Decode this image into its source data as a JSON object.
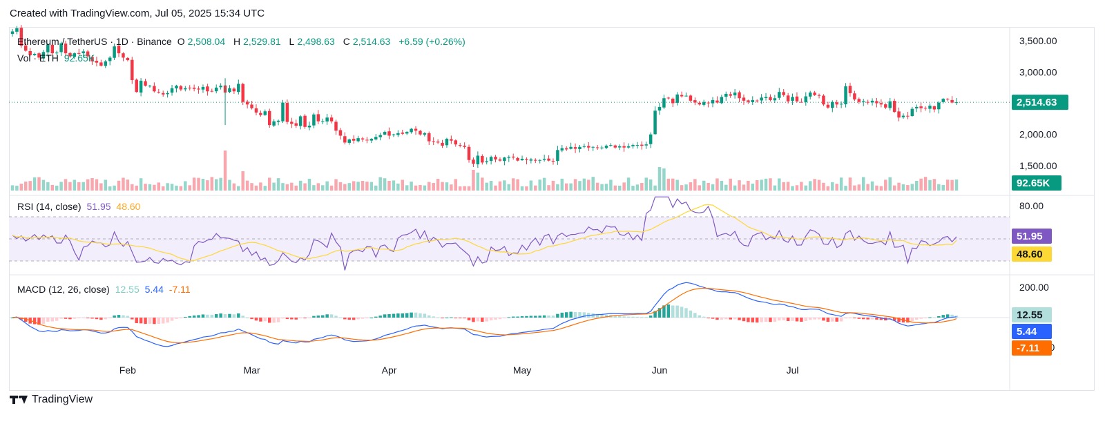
{
  "header": {
    "created_with": "Created with TradingView.com, Jul 05, 2025 15:34 UTC"
  },
  "legend": {
    "symbol": "Ethereum / TetherUS · 1D · Binance",
    "o_label": "O",
    "o_value": "2,508.04",
    "h_label": "H",
    "h_value": "2,529.81",
    "l_label": "L",
    "l_value": "2,498.63",
    "c_label": "C",
    "c_value": "2,514.63",
    "change": "+6.59 (+0.26%)",
    "vol_label": "Vol · ETH",
    "vol_value": "92.65K"
  },
  "rsi_legend": {
    "label": "RSI (14, close)",
    "rsi": "51.95",
    "ma": "48.60"
  },
  "macd_legend": {
    "label": "MACD (12, 26, close)",
    "hist": "12.55",
    "macd": "5.44",
    "signal": "-7.11"
  },
  "price_axis": [
    "3,500.00",
    "3,000.00",
    "2,500.00",
    "2,000.00",
    "1,500.00"
  ],
  "rsi_axis": [
    "80.00"
  ],
  "macd_axis": [
    "200.00",
    "0.00"
  ],
  "badges": {
    "last_price": "2,514.63",
    "volume": "92.65K",
    "rsi": "51.95",
    "rsi_ma": "48.60",
    "macd_hist": "12.55",
    "macd": "5.44",
    "macd_signal": "-7.11"
  },
  "time_axis": [
    "Feb",
    "Mar",
    "Apr",
    "May",
    "Jun",
    "Jul"
  ],
  "footer": {
    "brand": "TradingView"
  },
  "colors": {
    "up": "#089981",
    "down": "#f23645",
    "vol_up": "#94d6c9",
    "vol_down": "#f7a7ad",
    "rsi": "#7e57c2",
    "rsi_ma": "#fdd835",
    "rsi_band": "#f3eefc",
    "macd": "#2962ff",
    "signal": "#ff6d00",
    "hist_up_strong": "#26a69a",
    "hist_up_weak": "#b2dfdb",
    "hist_down_strong": "#ff5252",
    "hist_down_weak": "#ffcdd2"
  },
  "chart_data": {
    "type": "candlestick",
    "symbol": "ETH/USDT",
    "timeframe": "1D",
    "x_start": "2025-01-06",
    "x_end": "2025-07-05",
    "price_ylim": [
      1300,
      3600
    ],
    "closes": [
      3650,
      3700,
      3420,
      3340,
      3270,
      3290,
      3230,
      3320,
      3440,
      3300,
      3310,
      3460,
      3300,
      3250,
      3300,
      3300,
      3330,
      3250,
      3170,
      3150,
      3100,
      3170,
      3230,
      3410,
      3300,
      3230,
      3190,
      2870,
      2680,
      2860,
      2780,
      2780,
      2690,
      2670,
      2640,
      2660,
      2740,
      2780,
      2720,
      2740,
      2740,
      2730,
      2720,
      2760,
      2690,
      2690,
      2750,
      2780,
      2670,
      2740,
      2690,
      2810,
      2520,
      2480,
      2420,
      2350,
      2310,
      2370,
      2150,
      2210,
      2220,
      2510,
      2200,
      2170,
      2140,
      2290,
      2120,
      2140,
      2320,
      2210,
      2210,
      2270,
      2210,
      2060,
      1980,
      1870,
      1920,
      1900,
      1940,
      1920,
      1910,
      1930,
      1960,
      1990,
      2040,
      1980,
      2000,
      2020,
      2010,
      2040,
      2090,
      2060,
      2000,
      2020,
      1890,
      1880,
      1870,
      1820,
      1930,
      1900,
      1840,
      1820,
      1800,
      1590,
      1530,
      1660,
      1550,
      1570,
      1640,
      1600,
      1580,
      1630,
      1640,
      1630,
      1580,
      1610,
      1590,
      1600,
      1580,
      1590,
      1610,
      1580,
      1570,
      1750,
      1780,
      1760,
      1800,
      1770,
      1800,
      1810,
      1790,
      1800,
      1790,
      1790,
      1820,
      1830,
      1790,
      1810,
      1790,
      1810,
      1830,
      1830,
      1820,
      1840,
      2000,
      2380,
      2440,
      2580,
      2580,
      2500,
      2640,
      2610,
      2620,
      2540,
      2510,
      2480,
      2520,
      2500,
      2550,
      2510,
      2600,
      2650,
      2620,
      2670,
      2580,
      2540,
      2520,
      2550,
      2540,
      2590,
      2600,
      2550,
      2580,
      2680,
      2630,
      2530,
      2600,
      2530,
      2520,
      2610,
      2670,
      2630,
      2620,
      2480,
      2430,
      2520,
      2480,
      2490,
      2770,
      2660,
      2560,
      2520,
      2530,
      2520,
      2540,
      2500,
      2480,
      2430,
      2530,
      2360,
      2270,
      2300,
      2290,
      2410,
      2440,
      2420,
      2420,
      2460,
      2400,
      2510,
      2570,
      2560,
      2510,
      2514.63
    ],
    "rsi_ylim": [
      0,
      100
    ],
    "rsi_levels": [
      70,
      50,
      30
    ],
    "rsi_last": 51.95,
    "rsi_ma_last": 48.6,
    "macd_last": 5.44,
    "signal_last": -7.11,
    "hist_last": 12.55
  }
}
